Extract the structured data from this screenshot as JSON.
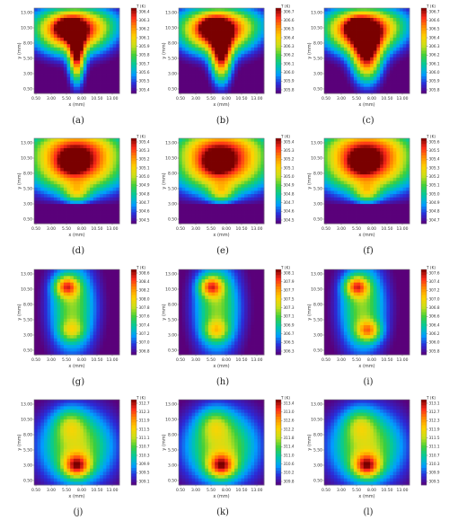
{
  "figure": {
    "x_axis_label": "x (mm)",
    "y_axis_label": "y (mm)",
    "colorbar_label": "T (K)",
    "x_ticks": [
      "0.50",
      "3.00",
      "5.50",
      "8.00",
      "10.50",
      "13.00"
    ],
    "y_ticks": [
      "0.50",
      "3.00",
      "5.50",
      "8.00",
      "10.50",
      "13.00"
    ],
    "colormap": [
      "#5a007a",
      "#2b2bd8",
      "#00a0ff",
      "#00c9a0",
      "#3ccf3c",
      "#c8e01a",
      "#ffd200",
      "#ff8c00",
      "#ff2a1a",
      "#7a0000"
    ]
  },
  "chart_data": [
    {
      "type": "heatmap",
      "caption": "(a)",
      "cbar_ticks": [
        "306.4",
        "306.3",
        "306.2",
        "306.1",
        "305.9",
        "305.8",
        "305.7",
        "305.6",
        "305.5",
        "305.4"
      ],
      "xlim": [
        0.5,
        13.0
      ],
      "ylim": [
        0.5,
        13.0
      ],
      "hot_spots": [
        {
          "x": 5.0,
          "y": 10.5,
          "intensity": 1.0
        }
      ],
      "hot_region": "inverted-T: broad top band, narrow stem at center down to y≈3"
    },
    {
      "type": "heatmap",
      "caption": "(b)",
      "cbar_ticks": [
        "306.7",
        "306.6",
        "306.5",
        "306.4",
        "306.3",
        "306.2",
        "306.1",
        "306.0",
        "305.9",
        "305.8"
      ],
      "xlim": [
        0.5,
        13.0
      ],
      "ylim": [
        0.5,
        13.0
      ],
      "hot_spots": [
        {
          "x": 5.0,
          "y": 10.5,
          "intensity": 1.0
        }
      ],
      "hot_region": "inverted-T, stem wider than (a)"
    },
    {
      "type": "heatmap",
      "caption": "(c)",
      "cbar_ticks": [
        "306.7",
        "306.6",
        "306.5",
        "306.4",
        "306.3",
        "306.2",
        "306.1",
        "306.0",
        "305.9",
        "305.8"
      ],
      "xlim": [
        0.5,
        13.0
      ],
      "ylim": [
        0.5,
        13.0
      ],
      "hot_spots": [
        {
          "x": 6.5,
          "y": 10.0,
          "intensity": 1.0
        }
      ],
      "hot_region": "broad cup shape, stem nearly merged"
    },
    {
      "type": "heatmap",
      "caption": "(d)",
      "cbar_ticks": [
        "305.4",
        "305.3",
        "305.2",
        "305.1",
        "305.0",
        "304.9",
        "304.8",
        "304.7",
        "304.6",
        "304.5"
      ],
      "xlim": [
        0.5,
        13.0
      ],
      "ylim": [
        0.5,
        13.0
      ],
      "hot_spots": [
        {
          "x": 6.5,
          "y": 9.5,
          "intensity": 1.0
        }
      ],
      "hot_region": "wide upper band, cool strip at y≈2"
    },
    {
      "type": "heatmap",
      "caption": "(e)",
      "cbar_ticks": [
        "305.4",
        "305.3",
        "305.2",
        "305.1",
        "305.0",
        "304.9",
        "304.8",
        "304.7",
        "304.6",
        "304.5"
      ],
      "xlim": [
        0.5,
        13.0
      ],
      "ylim": [
        0.5,
        13.0
      ],
      "hot_spots": [
        {
          "x": 6.5,
          "y": 9.5,
          "intensity": 1.0
        }
      ],
      "hot_region": "wide upper band, cool strip at y≈2"
    },
    {
      "type": "heatmap",
      "caption": "(f)",
      "cbar_ticks": [
        "305.6",
        "305.5",
        "305.4",
        "305.3",
        "305.2",
        "305.1",
        "305.0",
        "304.9",
        "304.8",
        "304.7"
      ],
      "xlim": [
        0.5,
        13.0
      ],
      "ylim": [
        0.5,
        13.0
      ],
      "hot_spots": [
        {
          "x": 6.5,
          "y": 9.5,
          "intensity": 1.0
        }
      ],
      "hot_region": "wide upper band, cool strip at y≈2"
    },
    {
      "type": "heatmap",
      "caption": "(g)",
      "cbar_ticks": [
        "308.6",
        "308.4",
        "308.2",
        "308.0",
        "307.8",
        "307.6",
        "307.4",
        "307.2",
        "307.0",
        "306.8"
      ],
      "xlim": [
        0.5,
        13.0
      ],
      "ylim": [
        0.5,
        13.0
      ],
      "hot_spots": [
        {
          "x": 5.0,
          "y": 10.5,
          "intensity": 1.0
        },
        {
          "x": 5.5,
          "y": 4.0,
          "intensity": 0.55
        }
      ],
      "hot_region": "vertical band, hottest near top"
    },
    {
      "type": "heatmap",
      "caption": "(h)",
      "cbar_ticks": [
        "308.1",
        "307.9",
        "307.7",
        "307.5",
        "307.3",
        "307.1",
        "306.9",
        "306.7",
        "306.5",
        "306.3"
      ],
      "xlim": [
        0.5,
        13.0
      ],
      "ylim": [
        0.5,
        13.0
      ],
      "hot_spots": [
        {
          "x": 5.0,
          "y": 10.5,
          "intensity": 1.0
        },
        {
          "x": 5.5,
          "y": 4.0,
          "intensity": 0.65
        }
      ],
      "hot_region": "vertical band"
    },
    {
      "type": "heatmap",
      "caption": "(i)",
      "cbar_ticks": [
        "307.6",
        "307.4",
        "307.2",
        "307.0",
        "306.8",
        "306.6",
        "306.4",
        "306.2",
        "306.0",
        "305.8"
      ],
      "xlim": [
        0.5,
        13.0
      ],
      "ylim": [
        0.5,
        13.0
      ],
      "hot_spots": [
        {
          "x": 5.0,
          "y": 10.5,
          "intensity": 1.0
        },
        {
          "x": 7.0,
          "y": 3.5,
          "intensity": 0.95
        }
      ],
      "hot_region": "vertical band, two maxima"
    },
    {
      "type": "heatmap",
      "caption": "(j)",
      "cbar_ticks": [
        "312.7",
        "312.3",
        "311.9",
        "311.5",
        "311.1",
        "310.7",
        "310.3",
        "309.9",
        "309.5",
        "309.1"
      ],
      "xlim": [
        0.5,
        13.0
      ],
      "ylim": [
        0.5,
        13.0
      ],
      "hot_spots": [
        {
          "x": 6.5,
          "y": 3.0,
          "intensity": 1.0
        },
        {
          "x": 5.0,
          "y": 9.5,
          "intensity": 0.6
        }
      ],
      "hot_region": "wide region, hottest at bottom center"
    },
    {
      "type": "heatmap",
      "caption": "(k)",
      "cbar_ticks": [
        "313.4",
        "313.0",
        "312.6",
        "312.2",
        "311.8",
        "311.4",
        "311.0",
        "310.6",
        "310.2",
        "309.8"
      ],
      "xlim": [
        0.5,
        13.0
      ],
      "ylim": [
        0.5,
        13.0
      ],
      "hot_spots": [
        {
          "x": 6.5,
          "y": 3.0,
          "intensity": 1.0
        },
        {
          "x": 5.5,
          "y": 9.0,
          "intensity": 0.55
        }
      ],
      "hot_region": "wide region, hottest at bottom center"
    },
    {
      "type": "heatmap",
      "caption": "(l)",
      "cbar_ticks": [
        "313.1",
        "312.7",
        "312.3",
        "311.9",
        "311.5",
        "311.1",
        "310.7",
        "310.3",
        "309.9",
        "309.5"
      ],
      "xlim": [
        0.5,
        13.0
      ],
      "ylim": [
        0.5,
        13.0
      ],
      "hot_spots": [
        {
          "x": 6.5,
          "y": 3.0,
          "intensity": 1.0
        },
        {
          "x": 5.5,
          "y": 9.0,
          "intensity": 0.55
        }
      ],
      "hot_region": "wide region, hottest at bottom center"
    }
  ]
}
